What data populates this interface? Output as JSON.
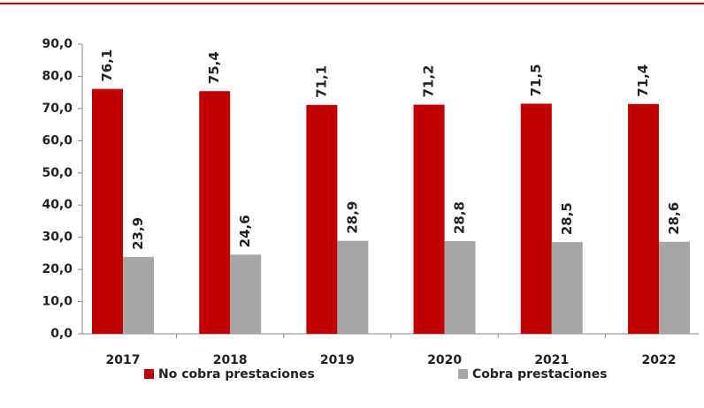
{
  "chart_data": {
    "type": "bar",
    "categories": [
      "2017",
      "2018",
      "2019",
      "2020",
      "2021",
      "2022"
    ],
    "series": [
      {
        "name": "No cobra prestaciones",
        "color": "#c00000",
        "values": [
          76.1,
          75.4,
          71.1,
          71.2,
          71.5,
          71.4
        ],
        "value_labels": [
          "76,1",
          "75,4",
          "71,1",
          "71,2",
          "71,5",
          "71,4"
        ]
      },
      {
        "name": "Cobra prestaciones",
        "color": "#a6a6a6",
        "values": [
          23.9,
          24.6,
          28.9,
          28.8,
          28.5,
          28.6
        ],
        "value_labels": [
          "23,9",
          "24,6",
          "28,9",
          "28,8",
          "28,5",
          "28,6"
        ]
      }
    ],
    "ylim": [
      0,
      90
    ],
    "yticks": [
      {
        "value": 0,
        "label": "0,0"
      },
      {
        "value": 10,
        "label": "10,0"
      },
      {
        "value": 20,
        "label": "20,0"
      },
      {
        "value": 30,
        "label": "30,0"
      },
      {
        "value": 40,
        "label": "40,0"
      },
      {
        "value": 50,
        "label": "50,0"
      },
      {
        "value": 60,
        "label": "60,0"
      },
      {
        "value": 70,
        "label": "70,0"
      },
      {
        "value": 80,
        "label": "80,0"
      },
      {
        "value": 90,
        "label": "90,0"
      }
    ],
    "legend": "bottom"
  }
}
